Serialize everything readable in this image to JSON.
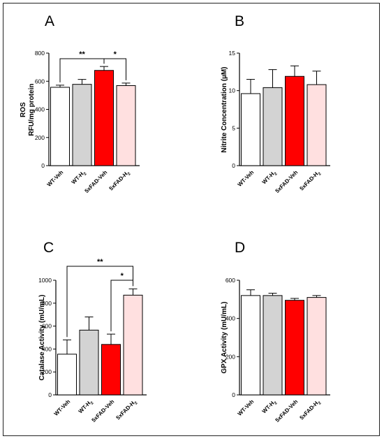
{
  "chart_data": [
    {
      "panel": "A",
      "type": "bar",
      "categories": [
        "WT-Veh",
        "WT-H2",
        "5xFAD-Veh",
        "5xFAD-H2"
      ],
      "values": [
        557,
        578,
        677,
        569
      ],
      "errors": [
        15,
        35,
        28,
        18
      ],
      "ylabel_lines": [
        "ROS",
        "RFU/mg protein"
      ],
      "ylim": [
        0,
        800
      ],
      "yticks": [
        0,
        200,
        400,
        600,
        800
      ],
      "colors": [
        "#ffffff",
        "#d3d3d3",
        "#ff0000",
        "#ffe0e0"
      ],
      "significance": [
        {
          "from": 0,
          "to": 2,
          "label": "**"
        },
        {
          "from": 2,
          "to": 3,
          "label": "*"
        }
      ]
    },
    {
      "panel": "B",
      "type": "bar",
      "categories": [
        "WT-Veh",
        "WT-H2",
        "5xFAD-Veh",
        "5xFAD-H2"
      ],
      "values": [
        9.6,
        10.4,
        11.9,
        10.8
      ],
      "errors": [
        1.9,
        2.4,
        1.4,
        1.8
      ],
      "ylabel_lines": [
        "Nitrite Concentration (µM)"
      ],
      "ylim": [
        0,
        15
      ],
      "yticks": [
        0,
        5,
        10,
        15
      ],
      "colors": [
        "#ffffff",
        "#d3d3d3",
        "#ff0000",
        "#ffe0e0"
      ],
      "significance": []
    },
    {
      "panel": "C",
      "type": "bar",
      "categories": [
        "WT-Veh",
        "WT-H2",
        "5xFAD-Veh",
        "5xFAD-H2"
      ],
      "values": [
        355,
        565,
        440,
        870
      ],
      "errors": [
        125,
        115,
        90,
        55
      ],
      "ylabel_lines": [
        "Catalase Activity (mU/mL)"
      ],
      "ylim": [
        0,
        1000
      ],
      "yticks": [
        0,
        200,
        400,
        600,
        800,
        1000
      ],
      "colors": [
        "#ffffff",
        "#d3d3d3",
        "#ff0000",
        "#ffe0e0"
      ],
      "significance": [
        {
          "from": 0,
          "to": 3,
          "label": "**"
        },
        {
          "from": 2,
          "to": 3,
          "label": "*"
        }
      ]
    },
    {
      "panel": "D",
      "type": "bar",
      "categories": [
        "WT-Veh",
        "WT-H2",
        "5xFAD-Veh",
        "5xFAD-H2"
      ],
      "values": [
        520,
        520,
        495,
        510
      ],
      "errors": [
        30,
        12,
        10,
        10
      ],
      "ylabel_lines": [
        "GPX Activity (mU/mL)"
      ],
      "ylim": [
        0,
        600
      ],
      "yticks": [
        0,
        200,
        400,
        600
      ],
      "colors": [
        "#ffffff",
        "#d3d3d3",
        "#ff0000",
        "#ffe0e0"
      ],
      "significance": []
    }
  ]
}
